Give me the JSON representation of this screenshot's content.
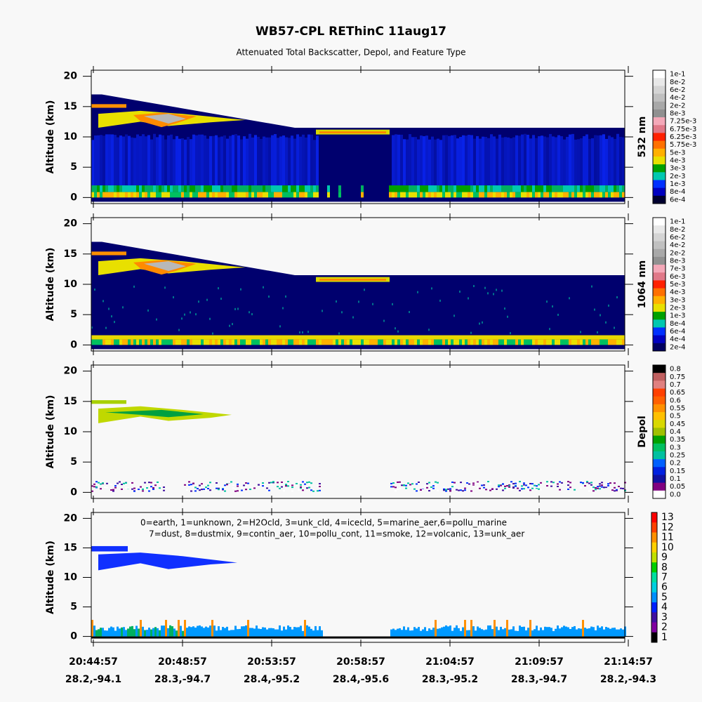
{
  "title": "WB57-CPL REThinC 11aug17",
  "subtitle": "Attenuated Total Backscatter, Depol, and Feature Type",
  "panels": [
    {
      "ylabel": "Altitude (km)",
      "ylim": [
        -1,
        21
      ],
      "yticks": [
        0,
        5,
        10,
        15,
        20
      ],
      "colorbar": {
        "label": "532 nm",
        "ticks": [
          "1e-1",
          "8e-2",
          "6e-2",
          "4e-2",
          "2e-2",
          "8e-3",
          "7.25e-3",
          "6.75e-3",
          "6.25e-3",
          "5.75e-3",
          "5e-3",
          "4e-3",
          "3e-3",
          "2e-3",
          "1e-3",
          "8e-4",
          "6e-4"
        ]
      }
    },
    {
      "ylabel": "Altitude (km)",
      "ylim": [
        -1,
        21
      ],
      "yticks": [
        0,
        5,
        10,
        15,
        20
      ],
      "colorbar": {
        "label": "1064 nm",
        "ticks": [
          "1e-1",
          "8e-2",
          "6e-2",
          "4e-2",
          "2e-2",
          "8e-3",
          "7e-3",
          "6e-3",
          "5e-3",
          "4e-3",
          "3e-3",
          "2e-3",
          "1e-3",
          "8e-4",
          "6e-4",
          "4e-4",
          "2e-4"
        ]
      }
    },
    {
      "ylabel": "Altitude (km)",
      "ylim": [
        -1,
        21
      ],
      "yticks": [
        0,
        5,
        10,
        15,
        20
      ],
      "colorbar": {
        "label": "Depol",
        "ticks": [
          "0.8",
          "0.75",
          "0.7",
          "0.65",
          "0.6",
          "0.55",
          "0.5",
          "0.45",
          "0.4",
          "0.35",
          "0.3",
          "0.25",
          "0.2",
          "0.15",
          "0.1",
          "0.05",
          "0.0"
        ]
      }
    },
    {
      "ylabel": "Altitude (km)",
      "ylim": [
        -1,
        21
      ],
      "yticks": [
        0,
        5,
        10,
        15,
        20
      ],
      "colorbar": {
        "ticks": [
          "13",
          "12",
          "11",
          "10",
          "9",
          "8",
          "7",
          "6",
          "5",
          "4",
          "3",
          "2",
          "1"
        ]
      },
      "legend": [
        "0=earth, 1=unknown, 2=H2Ocld, 3=unk_cld, 4=icecld, 5=marine_aer,6=pollu_marine",
        "7=dust, 8=dustmix, 9=contin_aer, 10=pollu_cont, 11=smoke, 12=volcanic, 13=unk_aer"
      ]
    }
  ],
  "xticks": [
    {
      "time": "20:44:57",
      "location": "28.2,-94.1"
    },
    {
      "time": "20:48:57",
      "location": "28.3,-94.7"
    },
    {
      "time": "20:53:57",
      "location": "28.4,-95.2"
    },
    {
      "time": "20:58:57",
      "location": "28.4,-95.6"
    },
    {
      "time": "21:04:57",
      "location": "28.3,-95.2"
    },
    {
      "time": "21:09:57",
      "location": "28.3,-94.7"
    },
    {
      "time": "21:14:57",
      "location": "28.2,-94.3"
    }
  ]
}
